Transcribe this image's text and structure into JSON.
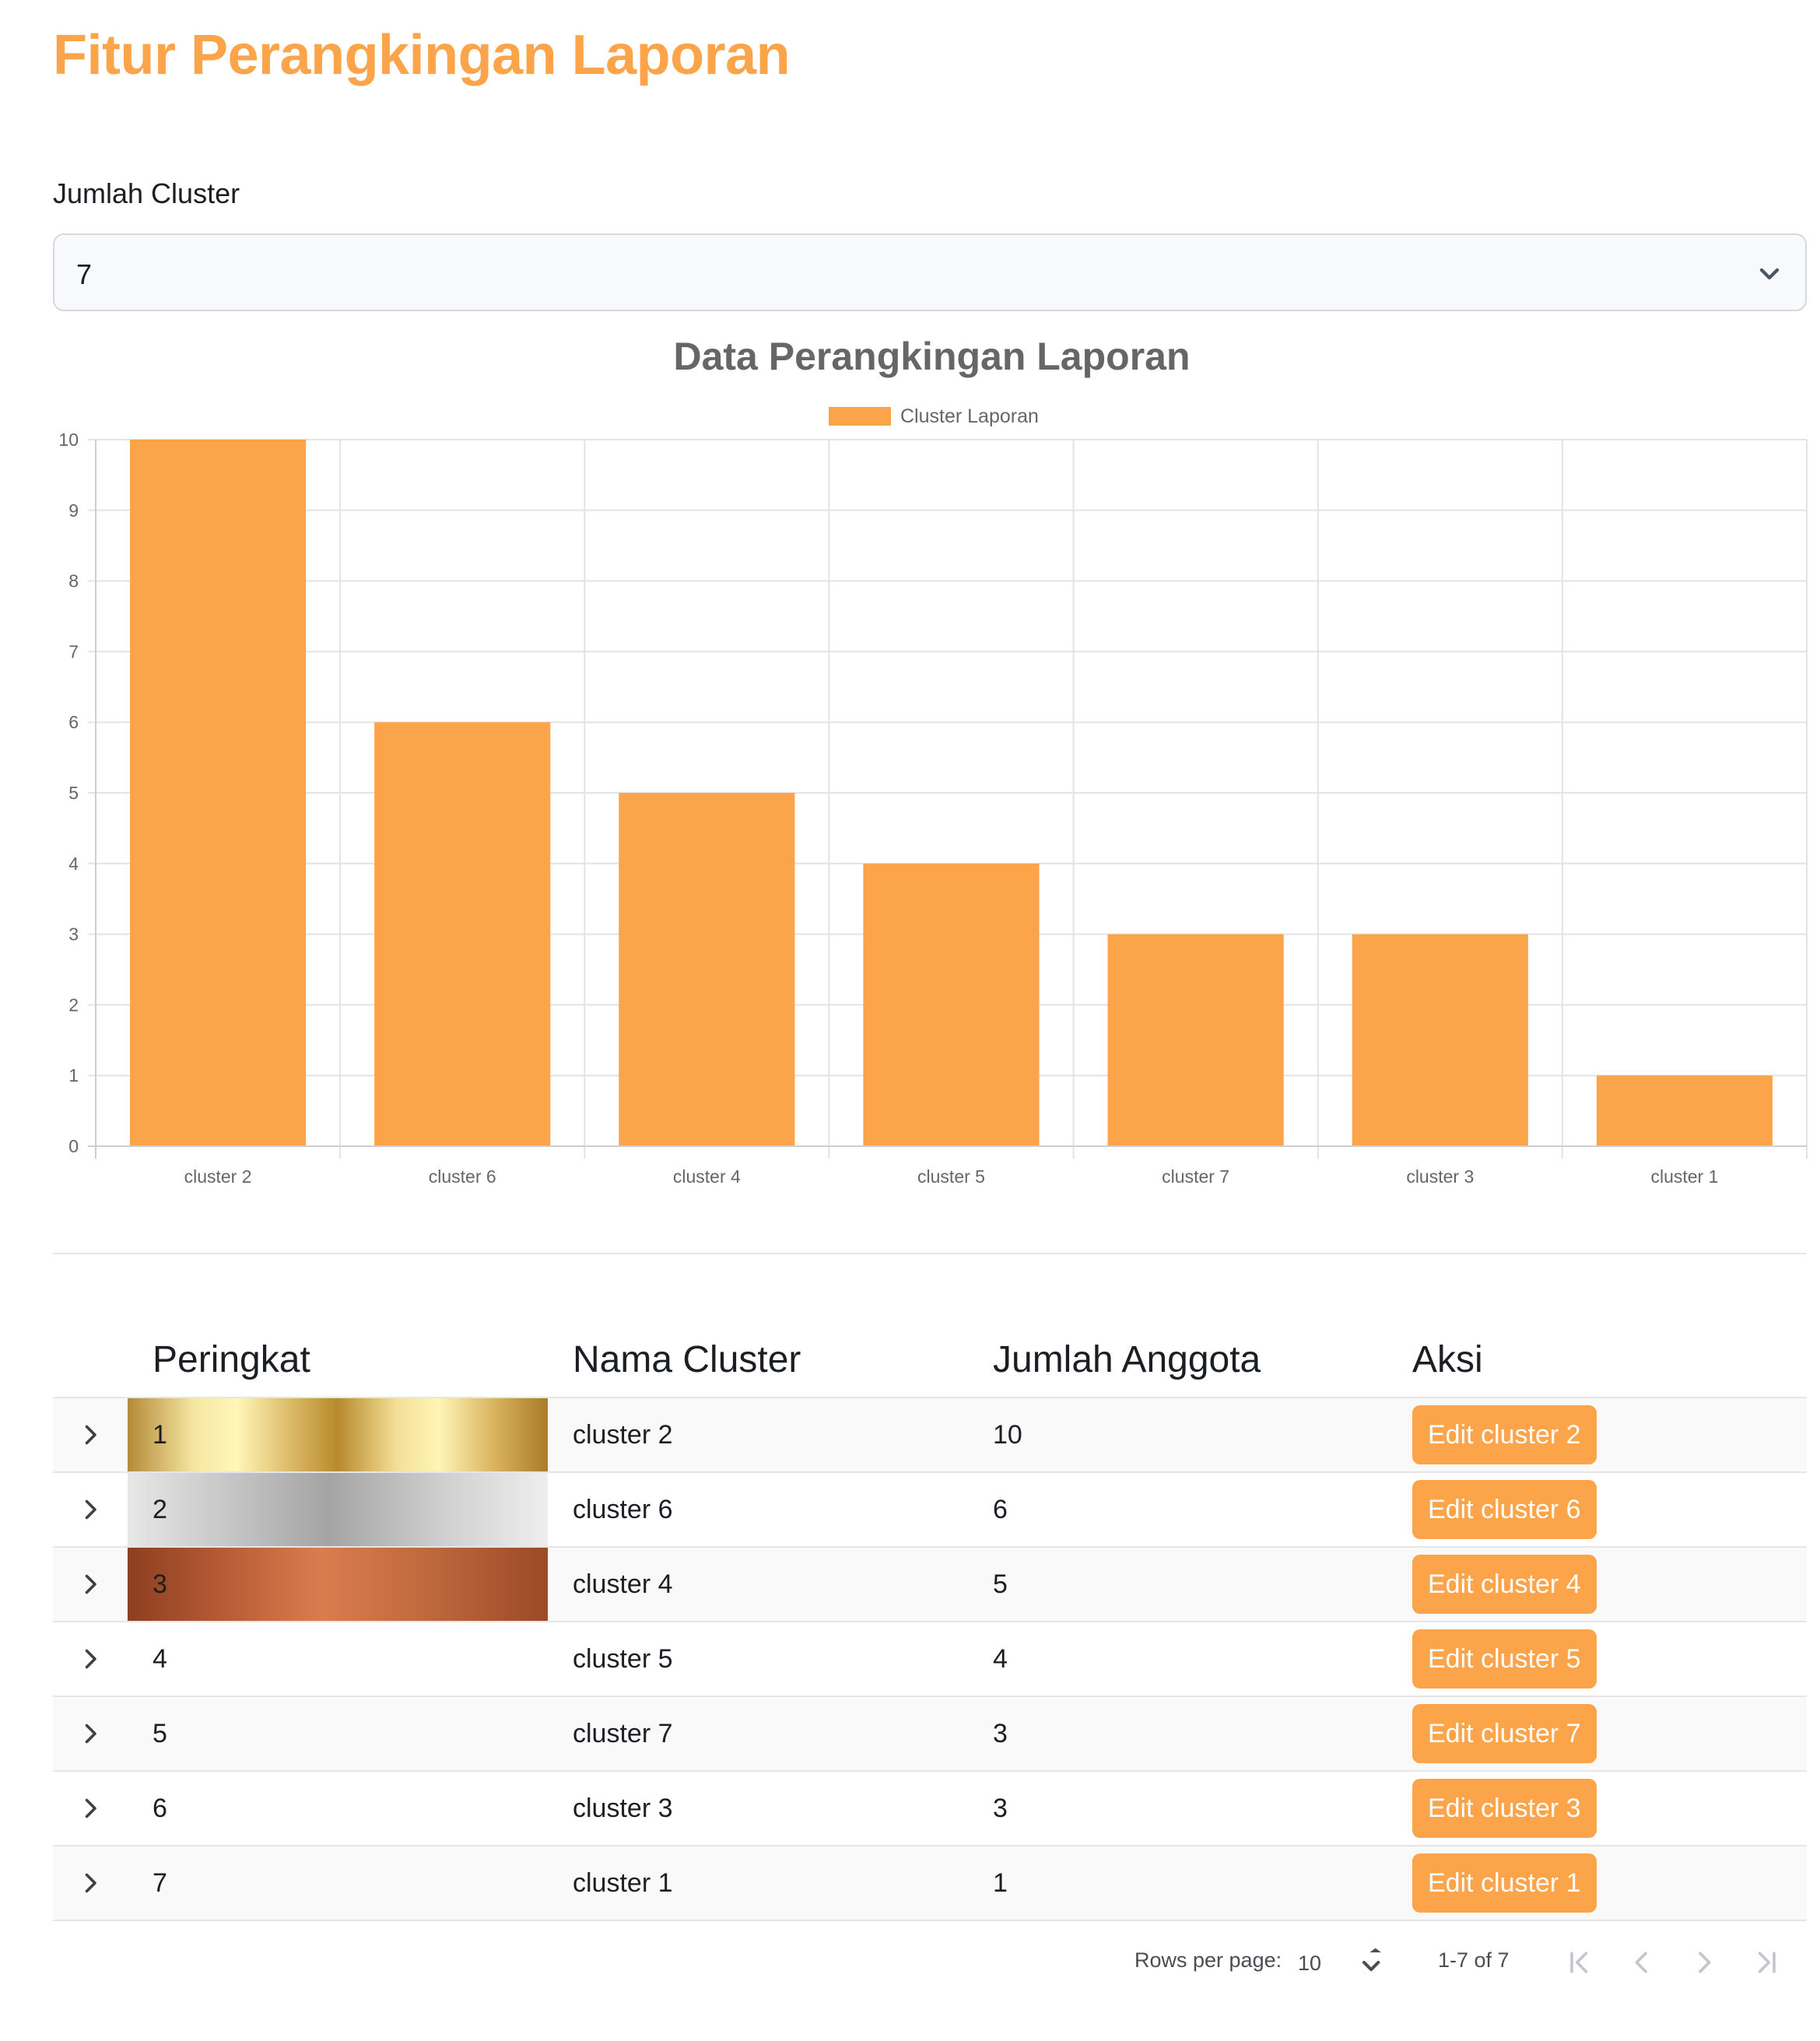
{
  "page": {
    "title": "Fitur Perangkingan Laporan"
  },
  "filter": {
    "label": "Jumlah Cluster",
    "selected": "7"
  },
  "chart_data": {
    "type": "bar",
    "title": "Data Perangkingan Laporan",
    "categories": [
      "cluster 2",
      "cluster 6",
      "cluster 4",
      "cluster 5",
      "cluster 7",
      "cluster 3",
      "cluster 1"
    ],
    "series": [
      {
        "name": "Cluster Laporan",
        "values": [
          10,
          6,
          5,
          4,
          3,
          3,
          1
        ]
      }
    ],
    "ylim": [
      0,
      10
    ],
    "yticks": [
      "0",
      "1",
      "2",
      "3",
      "4",
      "5",
      "6",
      "7",
      "8",
      "9",
      "10"
    ],
    "grid": true,
    "legend_position": "top-center",
    "colors": {
      "bar": "#fca44a",
      "grid": "#e3e3e3"
    }
  },
  "table": {
    "headers": [
      "Peringkat",
      "Nama Cluster",
      "Jumlah Anggota",
      "Aksi"
    ],
    "rows": [
      {
        "rank": "1",
        "name": "cluster 2",
        "count": "10",
        "action": "Edit cluster 2"
      },
      {
        "rank": "2",
        "name": "cluster 6",
        "count": "6",
        "action": "Edit cluster 6"
      },
      {
        "rank": "3",
        "name": "cluster 4",
        "count": "5",
        "action": "Edit cluster 4"
      },
      {
        "rank": "4",
        "name": "cluster 5",
        "count": "4",
        "action": "Edit cluster 5"
      },
      {
        "rank": "5",
        "name": "cluster 7",
        "count": "3",
        "action": "Edit cluster 7"
      },
      {
        "rank": "6",
        "name": "cluster 3",
        "count": "3",
        "action": "Edit cluster 3"
      },
      {
        "rank": "7",
        "name": "cluster 1",
        "count": "1",
        "action": "Edit cluster 1"
      }
    ]
  },
  "pagination": {
    "rows_per_page_label": "Rows per page:",
    "rows_per_page": "10",
    "range": "1-7 of 7"
  },
  "theme": {
    "accent": "#fca44a"
  }
}
